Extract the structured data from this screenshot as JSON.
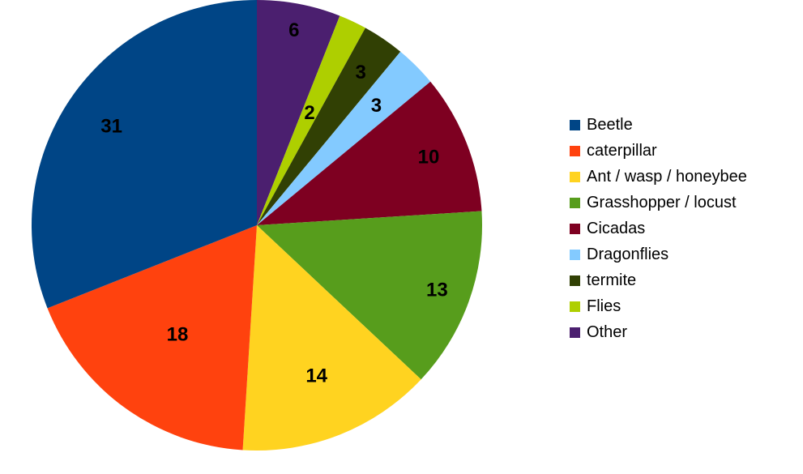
{
  "chart_data": {
    "type": "pie",
    "title": "",
    "legend_position": "right",
    "categories": [
      "Beetle",
      "caterpillar",
      "Ant / wasp / honeybee",
      "Grasshopper / locust",
      "Cicadas",
      "Dragonflies",
      "termite",
      "Flies",
      "Other"
    ],
    "values": [
      31,
      18,
      14,
      13,
      10,
      3,
      3,
      2,
      6
    ],
    "colors": [
      "#004586",
      "#ff420e",
      "#ffd320",
      "#579d1c",
      "#7e0021",
      "#83caff",
      "#314004",
      "#aecf00",
      "#4b1f6f"
    ],
    "data_labels": [
      "31",
      "18",
      "14",
      "13",
      "10",
      "3",
      "3",
      "2",
      "6"
    ]
  }
}
